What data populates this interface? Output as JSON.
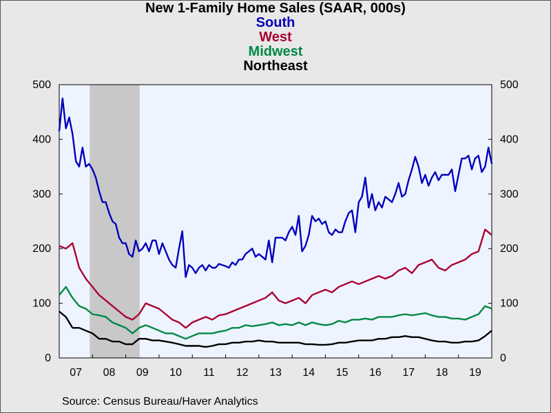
{
  "chart_data": {
    "type": "line",
    "title": "New 1-Family Home Sales (SAAR, 000s)",
    "source": "Source:  Census Bureau/Haver Analytics",
    "x_range": [
      2007.0,
      2020.0
    ],
    "ylim": [
      0,
      500
    ],
    "y_ticks": [
      "0",
      "100",
      "200",
      "300",
      "400",
      "500"
    ],
    "x_ticks": [
      {
        "label": "07",
        "x": 2007.5
      },
      {
        "label": "08",
        "x": 2008.5
      },
      {
        "label": "09",
        "x": 2009.5
      },
      {
        "label": "10",
        "x": 2010.5
      },
      {
        "label": "11",
        "x": 2011.5
      },
      {
        "label": "12",
        "x": 2012.5
      },
      {
        "label": "13",
        "x": 2013.5
      },
      {
        "label": "14",
        "x": 2014.5
      },
      {
        "label": "15",
        "x": 2015.5
      },
      {
        "label": "16",
        "x": 2016.5
      },
      {
        "label": "17",
        "x": 2017.5
      },
      {
        "label": "18",
        "x": 2018.5
      },
      {
        "label": "19",
        "x": 2019.5
      }
    ],
    "recession": [
      2007.917,
      2009.417
    ],
    "series": [
      {
        "name": "South",
        "color": "#0000bb",
        "points": [
          [
            2007.0,
            415
          ],
          [
            2007.1,
            475
          ],
          [
            2007.2,
            420
          ],
          [
            2007.3,
            440
          ],
          [
            2007.4,
            410
          ],
          [
            2007.5,
            360
          ],
          [
            2007.6,
            350
          ],
          [
            2007.7,
            385
          ],
          [
            2007.8,
            350
          ],
          [
            2007.9,
            355
          ],
          [
            2008.0,
            345
          ],
          [
            2008.1,
            330
          ],
          [
            2008.2,
            305
          ],
          [
            2008.3,
            285
          ],
          [
            2008.4,
            285
          ],
          [
            2008.5,
            265
          ],
          [
            2008.6,
            250
          ],
          [
            2008.7,
            245
          ],
          [
            2008.8,
            220
          ],
          [
            2008.9,
            210
          ],
          [
            2009.0,
            210
          ],
          [
            2009.1,
            190
          ],
          [
            2009.2,
            185
          ],
          [
            2009.3,
            215
          ],
          [
            2009.4,
            195
          ],
          [
            2009.5,
            200
          ],
          [
            2009.6,
            210
          ],
          [
            2009.7,
            195
          ],
          [
            2009.8,
            215
          ],
          [
            2009.9,
            215
          ],
          [
            2010.0,
            190
          ],
          [
            2010.1,
            210
          ],
          [
            2010.2,
            195
          ],
          [
            2010.3,
            180
          ],
          [
            2010.4,
            170
          ],
          [
            2010.5,
            165
          ],
          [
            2010.6,
            200
          ],
          [
            2010.7,
            232
          ],
          [
            2010.8,
            148
          ],
          [
            2010.9,
            170
          ],
          [
            2011.0,
            165
          ],
          [
            2011.1,
            155
          ],
          [
            2011.2,
            165
          ],
          [
            2011.3,
            170
          ],
          [
            2011.4,
            160
          ],
          [
            2011.5,
            170
          ],
          [
            2011.6,
            165
          ],
          [
            2011.7,
            165
          ],
          [
            2011.8,
            172
          ],
          [
            2011.9,
            170
          ],
          [
            2012.0,
            168
          ],
          [
            2012.1,
            165
          ],
          [
            2012.2,
            175
          ],
          [
            2012.3,
            170
          ],
          [
            2012.4,
            180
          ],
          [
            2012.5,
            180
          ],
          [
            2012.6,
            190
          ],
          [
            2012.7,
            195
          ],
          [
            2012.8,
            200
          ],
          [
            2012.9,
            185
          ],
          [
            2013.0,
            190
          ],
          [
            2013.1,
            185
          ],
          [
            2013.2,
            180
          ],
          [
            2013.3,
            215
          ],
          [
            2013.4,
            175
          ],
          [
            2013.5,
            220
          ],
          [
            2013.6,
            220
          ],
          [
            2013.7,
            220
          ],
          [
            2013.8,
            215
          ],
          [
            2013.9,
            230
          ],
          [
            2014.0,
            240
          ],
          [
            2014.1,
            225
          ],
          [
            2014.2,
            260
          ],
          [
            2014.3,
            195
          ],
          [
            2014.4,
            205
          ],
          [
            2014.5,
            225
          ],
          [
            2014.6,
            260
          ],
          [
            2014.7,
            250
          ],
          [
            2014.8,
            255
          ],
          [
            2014.9,
            245
          ],
          [
            2015.0,
            250
          ],
          [
            2015.1,
            230
          ],
          [
            2015.2,
            225
          ],
          [
            2015.3,
            235
          ],
          [
            2015.4,
            230
          ],
          [
            2015.5,
            230
          ],
          [
            2015.6,
            250
          ],
          [
            2015.7,
            265
          ],
          [
            2015.8,
            270
          ],
          [
            2015.9,
            230
          ],
          [
            2016.0,
            285
          ],
          [
            2016.1,
            295
          ],
          [
            2016.2,
            330
          ],
          [
            2016.3,
            275
          ],
          [
            2016.4,
            300
          ],
          [
            2016.5,
            270
          ],
          [
            2016.6,
            285
          ],
          [
            2016.7,
            275
          ],
          [
            2016.8,
            295
          ],
          [
            2016.9,
            290
          ],
          [
            2017.0,
            285
          ],
          [
            2017.1,
            300
          ],
          [
            2017.2,
            320
          ],
          [
            2017.3,
            295
          ],
          [
            2017.4,
            300
          ],
          [
            2017.5,
            325
          ],
          [
            2017.6,
            345
          ],
          [
            2017.7,
            368
          ],
          [
            2017.8,
            350
          ],
          [
            2017.9,
            320
          ],
          [
            2018.0,
            335
          ],
          [
            2018.1,
            315
          ],
          [
            2018.2,
            330
          ],
          [
            2018.3,
            340
          ],
          [
            2018.4,
            325
          ],
          [
            2018.5,
            335
          ],
          [
            2018.6,
            335
          ],
          [
            2018.7,
            335
          ],
          [
            2018.8,
            345
          ],
          [
            2018.9,
            305
          ],
          [
            2019.0,
            335
          ],
          [
            2019.1,
            365
          ],
          [
            2019.2,
            365
          ],
          [
            2019.3,
            370
          ],
          [
            2019.4,
            345
          ],
          [
            2019.5,
            365
          ],
          [
            2019.6,
            370
          ],
          [
            2019.7,
            340
          ],
          [
            2019.8,
            350
          ],
          [
            2019.9,
            385
          ],
          [
            2020.0,
            355
          ]
        ]
      }
    ]
  }
}
